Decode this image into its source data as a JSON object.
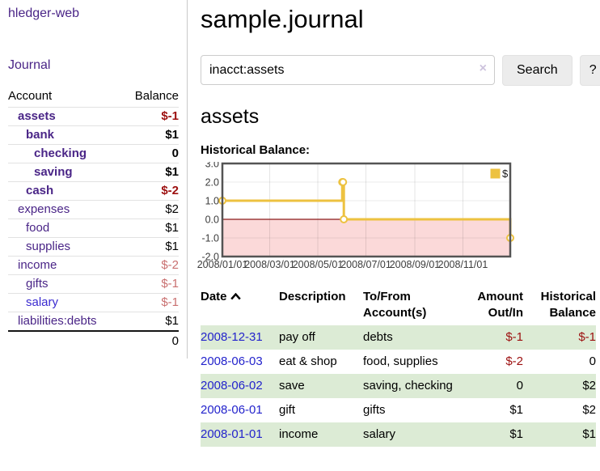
{
  "colors": {
    "link_purple": "#4a2587",
    "link_blue": "#3a2bd0",
    "date_blue": "#2323cc",
    "neg_strong": "#9c0f0f",
    "neg_light": "#c97070",
    "row_green": "#dcebd5",
    "button_bg": "#ececec",
    "chart_line": "#edc240",
    "chart_neg_fill": "#fbd9d9",
    "chart_zero": "#8b1a1a"
  },
  "sidebar": {
    "brand": "hledger-web",
    "nav_journal": "Journal",
    "table": {
      "col_account": "Account",
      "col_balance": "Balance",
      "accounts": [
        {
          "name": "assets",
          "depth": 1,
          "bold": true,
          "blue": false,
          "balance": "$-1",
          "bclass": "neg-strong"
        },
        {
          "name": "bank",
          "depth": 2,
          "bold": true,
          "blue": false,
          "balance": "$1",
          "bclass": "pos"
        },
        {
          "name": "checking",
          "depth": 3,
          "bold": true,
          "blue": false,
          "balance": "0",
          "bclass": "pos"
        },
        {
          "name": "saving",
          "depth": 3,
          "bold": true,
          "blue": false,
          "balance": "$1",
          "bclass": "pos"
        },
        {
          "name": "cash",
          "depth": 2,
          "bold": true,
          "blue": false,
          "balance": "$-2",
          "bclass": "neg-strong"
        },
        {
          "name": "expenses",
          "depth": 1,
          "bold": false,
          "blue": false,
          "balance": "$2",
          "bclass": "pos"
        },
        {
          "name": "food",
          "depth": 2,
          "bold": false,
          "blue": false,
          "balance": "$1",
          "bclass": "pos"
        },
        {
          "name": "supplies",
          "depth": 2,
          "bold": false,
          "blue": false,
          "balance": "$1",
          "bclass": "pos"
        },
        {
          "name": "income",
          "depth": 1,
          "bold": false,
          "blue": false,
          "balance": "$-2",
          "bclass": "neg-light"
        },
        {
          "name": "gifts",
          "depth": 2,
          "bold": false,
          "blue": false,
          "balance": "$-1",
          "bclass": "neg-light"
        },
        {
          "name": "salary",
          "depth": 2,
          "bold": false,
          "blue": true,
          "balance": "$-1",
          "bclass": "neg-light"
        },
        {
          "name": "liabilities:debts",
          "depth": 1,
          "bold": false,
          "blue": false,
          "balance": "$1",
          "bclass": "pos"
        }
      ],
      "total": "0"
    }
  },
  "header": {
    "title": "sample.journal"
  },
  "search": {
    "value": "inacct:assets",
    "clear_icon": "×",
    "search_label": "Search",
    "help_label": "?"
  },
  "account": {
    "heading": "assets",
    "chart_label": "Historical Balance:"
  },
  "chart_data": {
    "type": "line",
    "style": "step",
    "legend": "$",
    "legend_position": "top-right",
    "grid": true,
    "xlim": [
      "2008-01-01",
      "2008-12-31"
    ],
    "ylim": [
      -2,
      3
    ],
    "yticks": [
      {
        "v": 3,
        "label": "3.0"
      },
      {
        "v": 2,
        "label": "2.0"
      },
      {
        "v": 1,
        "label": "1.0"
      },
      {
        "v": 0,
        "label": "0.0"
      },
      {
        "v": -1,
        "label": "-1.0"
      },
      {
        "v": -2,
        "label": "-2.0"
      }
    ],
    "xticks": [
      "2008/01/01",
      "2008/03/01",
      "2008/05/01",
      "2008/07/01",
      "2008/09/01",
      "2008/11/01"
    ],
    "points": [
      {
        "date": "2008-01-01",
        "value": 1
      },
      {
        "date": "2008-06-01",
        "value": 2
      },
      {
        "date": "2008-06-02",
        "value": 2
      },
      {
        "date": "2008-06-03",
        "value": 0
      },
      {
        "date": "2008-12-31",
        "value": -1
      }
    ],
    "negative_region_shaded": true
  },
  "register": {
    "headers": [
      "Date",
      "Description",
      "To/From Account(s)",
      "Amount Out/In",
      "Historical Balance"
    ],
    "rows": [
      {
        "date": "2008-12-31",
        "description": "pay off",
        "accounts": "debts",
        "amount": "$-1",
        "amount_neg": true,
        "balance": "$-1",
        "balance_neg": true,
        "shaded": true
      },
      {
        "date": "2008-06-03",
        "description": "eat & shop",
        "accounts": "food, supplies",
        "amount": "$-2",
        "amount_neg": true,
        "balance": "0",
        "balance_neg": false,
        "shaded": false
      },
      {
        "date": "2008-06-02",
        "description": "save",
        "accounts": "saving, checking",
        "amount": "0",
        "amount_neg": false,
        "balance": "$2",
        "balance_neg": false,
        "shaded": true
      },
      {
        "date": "2008-06-01",
        "description": "gift",
        "accounts": "gifts",
        "amount": "$1",
        "amount_neg": false,
        "balance": "$2",
        "balance_neg": false,
        "shaded": false
      },
      {
        "date": "2008-01-01",
        "description": "income",
        "accounts": "salary",
        "amount": "$1",
        "amount_neg": false,
        "balance": "$1",
        "balance_neg": false,
        "shaded": true
      }
    ]
  }
}
